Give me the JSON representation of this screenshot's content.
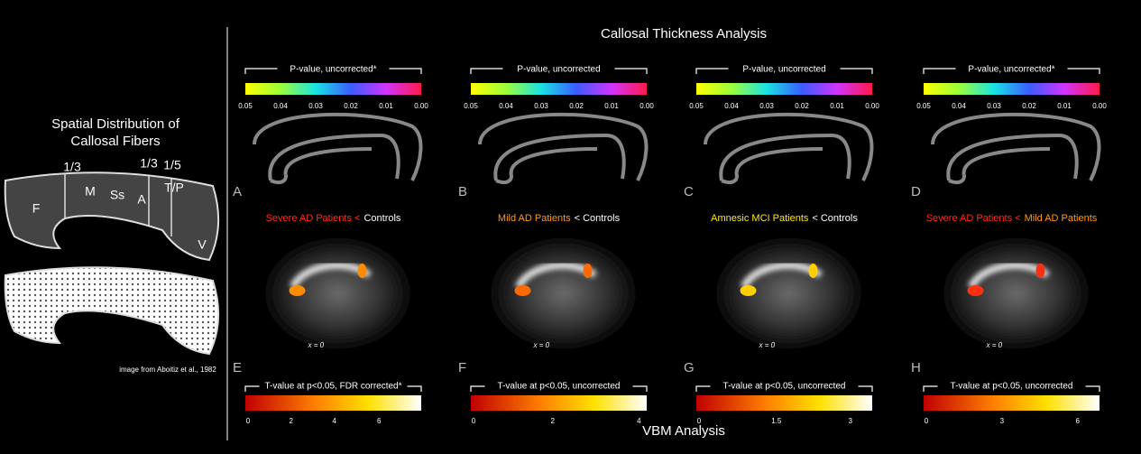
{
  "header": {
    "title": "Callosal Thickness Analysis",
    "footer": "VBM Analysis"
  },
  "left": {
    "title": [
      "Spatial Distribution of",
      "Callosal Fibers"
    ],
    "region_labels": [
      "1/3",
      "M",
      "Ss",
      "A",
      "1/3",
      "1/5",
      "T/P",
      "F",
      "V"
    ],
    "credit": "image from Aboitiz et al., 1982"
  },
  "panels": [
    {
      "top_label": "P-value, uncorrected*",
      "top_ticks": [
        "0.05",
        "0.04",
        "0.03",
        "0.02",
        "0.01",
        "0.00"
      ],
      "top_letter": "A",
      "comparison": [
        {
          "text": "Severe AD Patients <",
          "color": "#ff2a1a"
        },
        {
          "text": "Controls",
          "color": "#ffffff"
        }
      ],
      "bottom_letter": "E",
      "slice": "x = 0",
      "bottom_label": "T-value at p<0.05, FDR corrected*",
      "bottom_ticks": [
        "0",
        "2",
        "4",
        "6"
      ]
    },
    {
      "top_label": "P-value, uncorrected",
      "top_ticks": [
        "0.05",
        "0.04",
        "0.03",
        "0.02",
        "0.01",
        "0.00"
      ],
      "top_letter": "B",
      "comparison": [
        {
          "text": "Mild AD Patients",
          "color": "#ff9a1a"
        },
        {
          "text": "< Controls",
          "color": "#ffffff"
        }
      ],
      "bottom_letter": "F",
      "slice": "x = 0",
      "bottom_label": "T-value at p<0.05, uncorrected",
      "bottom_ticks": [
        "0",
        "2",
        "4"
      ]
    },
    {
      "top_label": "P-value, uncorrected",
      "top_ticks": [
        "0.05",
        "0.04",
        "0.03",
        "0.02",
        "0.01",
        "0.00"
      ],
      "top_letter": "C",
      "comparison": [
        {
          "text": "Amnesic MCI Patients",
          "color": "#ffe81a"
        },
        {
          "text": "< Controls",
          "color": "#ffffff"
        }
      ],
      "bottom_letter": "G",
      "slice": "x = 0",
      "bottom_label": "T-value at p<0.05, uncorrected",
      "bottom_ticks": [
        "0",
        "1.5",
        "3"
      ]
    },
    {
      "top_label": "P-value, uncorrected*",
      "top_ticks": [
        "0.05",
        "0.04",
        "0.03",
        "0.02",
        "0.01",
        "0.00"
      ],
      "top_letter": "D",
      "comparison": [
        {
          "text": "Severe AD Patients <",
          "color": "#ff2a1a"
        },
        {
          "text": "Mild AD Patients",
          "color": "#ff9a1a"
        }
      ],
      "bottom_letter": "H",
      "slice": "x = 0",
      "bottom_label": "T-value at p<0.05, uncorrected",
      "bottom_ticks": [
        "0",
        "3",
        "6"
      ]
    }
  ]
}
